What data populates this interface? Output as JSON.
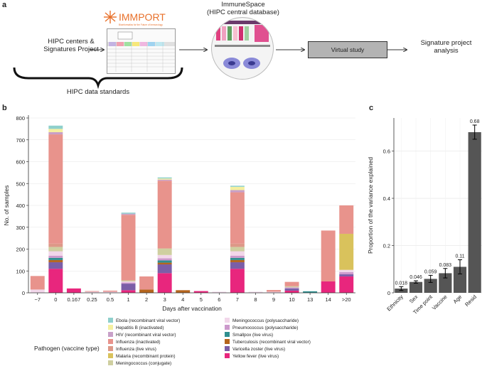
{
  "panel_a": {
    "letter": "a",
    "immport_logo": "IMMPORT",
    "immport_tagline": "Bioinformatics for the Future of Immunology",
    "hipc_label_line1": "HIPC centers &",
    "hipc_label_line2": "Signatures Project",
    "immunespace_line1": "ImmuneSpace",
    "immunespace_line2": "(HIPC central database)",
    "virtual_study": "Virtual study",
    "analysis_line1": "Signature project",
    "analysis_line2": "analysis",
    "standards": "HIPC data standards",
    "colors": {
      "box_fill": "#b3b3b3",
      "logo_orange": "#e8702a"
    }
  },
  "panel_b": {
    "letter": "b",
    "chart_data": {
      "type": "bar",
      "stacked": true,
      "xlabel": "Days after vaccination",
      "ylabel": "No. of samples",
      "ylim": [
        0,
        800
      ],
      "yticks": [
        0,
        100,
        200,
        300,
        400,
        500,
        600,
        700,
        800
      ],
      "categories": [
        "−7",
        "0",
        "0.167",
        "0.25",
        "0.5",
        "1",
        "2",
        "3",
        "4",
        "5",
        "6",
        "7",
        "8",
        "9",
        "10",
        "13",
        "14",
        ">20"
      ],
      "legend_title": "Pathogen (vaccine type)",
      "series": [
        {
          "name": "Yellow fever (live virus)",
          "color": "#e8267d",
          "values": [
            0,
            110,
            20,
            0,
            0,
            12,
            0,
            90,
            0,
            8,
            0,
            110,
            0,
            0,
            10,
            0,
            52,
            75
          ]
        },
        {
          "name": "Varicella zoster (live virus)",
          "color": "#7b5ea7",
          "values": [
            0,
            30,
            0,
            0,
            0,
            30,
            0,
            40,
            0,
            0,
            0,
            30,
            0,
            0,
            10,
            0,
            0,
            10
          ]
        },
        {
          "name": "Tuberculosis (recombinant viral vector)",
          "color": "#b5651d",
          "values": [
            0,
            10,
            0,
            0,
            0,
            0,
            15,
            8,
            12,
            0,
            0,
            10,
            0,
            0,
            0,
            0,
            0,
            0
          ]
        },
        {
          "name": "Smallpox (live virus)",
          "color": "#2f8f8f",
          "values": [
            0,
            10,
            0,
            0,
            0,
            0,
            0,
            10,
            0,
            0,
            0,
            10,
            0,
            0,
            0,
            7,
            0,
            0
          ]
        },
        {
          "name": "Pneumococcus (polysaccharide)",
          "color": "#cc99cc",
          "values": [
            0,
            10,
            0,
            0,
            0,
            5,
            0,
            10,
            0,
            0,
            0,
            10,
            0,
            0,
            5,
            0,
            0,
            10
          ]
        },
        {
          "name": "Meningococcus (polysaccharide)",
          "color": "#f2d7ea",
          "values": [
            15,
            20,
            0,
            5,
            5,
            5,
            0,
            15,
            0,
            0,
            5,
            20,
            5,
            5,
            0,
            0,
            0,
            10
          ]
        },
        {
          "name": "Meningococcus (conjugate)",
          "color": "#cfcfa0",
          "values": [
            0,
            20,
            0,
            0,
            0,
            5,
            0,
            30,
            0,
            0,
            0,
            20,
            0,
            0,
            5,
            0,
            0,
            0
          ]
        },
        {
          "name": "Malaria (recombinant protein)",
          "color": "#d9c25c",
          "values": [
            0,
            0,
            0,
            0,
            0,
            0,
            0,
            0,
            0,
            0,
            0,
            0,
            0,
            0,
            0,
            0,
            0,
            165
          ]
        },
        {
          "name": "Influenza (live virus)",
          "color": "#dd9988",
          "values": [
            0,
            15,
            0,
            0,
            0,
            0,
            0,
            0,
            0,
            0,
            0,
            15,
            0,
            0,
            0,
            0,
            0,
            0
          ]
        },
        {
          "name": "Influenza (inactivated)",
          "color": "#e8938c",
          "values": [
            62,
            500,
            0,
            3,
            5,
            300,
            60,
            310,
            0,
            0,
            0,
            235,
            0,
            8,
            20,
            0,
            233,
            130
          ]
        },
        {
          "name": "HIV (recombinant viral vector)",
          "color": "#c8a0c8",
          "values": [
            0,
            10,
            0,
            0,
            0,
            5,
            0,
            5,
            0,
            0,
            0,
            10,
            0,
            0,
            0,
            0,
            0,
            0
          ]
        },
        {
          "name": "Hepatitis B (inactivated)",
          "color": "#f5f0a0",
          "values": [
            0,
            15,
            0,
            0,
            0,
            0,
            0,
            5,
            0,
            0,
            0,
            15,
            0,
            0,
            0,
            0,
            0,
            0
          ]
        },
        {
          "name": "Ebola (recombinant viral vector)",
          "color": "#8fd0cc",
          "values": [
            0,
            15,
            0,
            0,
            0,
            5,
            0,
            5,
            0,
            0,
            0,
            5,
            0,
            0,
            0,
            0,
            0,
            0
          ]
        }
      ]
    },
    "legend_left": [
      {
        "label": "Ebola (recombinant viral vector)",
        "color": "#8fd0cc"
      },
      {
        "label": "Hepatitis B (inactivated)",
        "color": "#f5f0a0"
      },
      {
        "label": "HIV (recombinant viral vector)",
        "color": "#c8a0c8"
      },
      {
        "label": "Influenza (inactivated)",
        "color": "#e8938c"
      },
      {
        "label": "Influenza (live virus)",
        "color": "#dd9988"
      },
      {
        "label": "Malaria (recombinant protein)",
        "color": "#d9c25c"
      },
      {
        "label": "Meningococcus (conjugate)",
        "color": "#cfcfa0"
      }
    ],
    "legend_right": [
      {
        "label": "Meningococcus (polysaccharide)",
        "color": "#f2d7ea"
      },
      {
        "label": "Pneumococcus (polysaccharide)",
        "color": "#cc99cc"
      },
      {
        "label": "Smallpox (live virus)",
        "color": "#2f8f8f"
      },
      {
        "label": "Tuberculosis (recombinant viral vector)",
        "color": "#b5651d"
      },
      {
        "label": "Varicella zoster (live virus)",
        "color": "#7b5ea7"
      },
      {
        "label": "Yellow fever (live virus)",
        "color": "#e8267d"
      }
    ]
  },
  "panel_c": {
    "letter": "c",
    "chart_data": {
      "type": "bar",
      "categories": [
        "Ethnicity",
        "Sex",
        "Time point",
        "Vaccine",
        "Age",
        "Resid"
      ],
      "values": [
        0.018,
        0.046,
        0.059,
        0.083,
        0.11,
        0.68
      ],
      "value_labels": [
        "0.018",
        "0.046",
        "0.059",
        "0.083",
        "0.11",
        "0.68"
      ],
      "error": [
        0.008,
        0.005,
        0.015,
        0.02,
        0.03,
        0.03
      ],
      "ylabel": "Proportion of the variance explained",
      "ylim": [
        0,
        0.74
      ],
      "yticks": [
        0,
        0.2,
        0.4,
        0.6
      ],
      "ytick_labels": [
        "0",
        "0.2",
        "0.4",
        "0.6"
      ],
      "bar_color": "#555555",
      "grid": true
    }
  }
}
